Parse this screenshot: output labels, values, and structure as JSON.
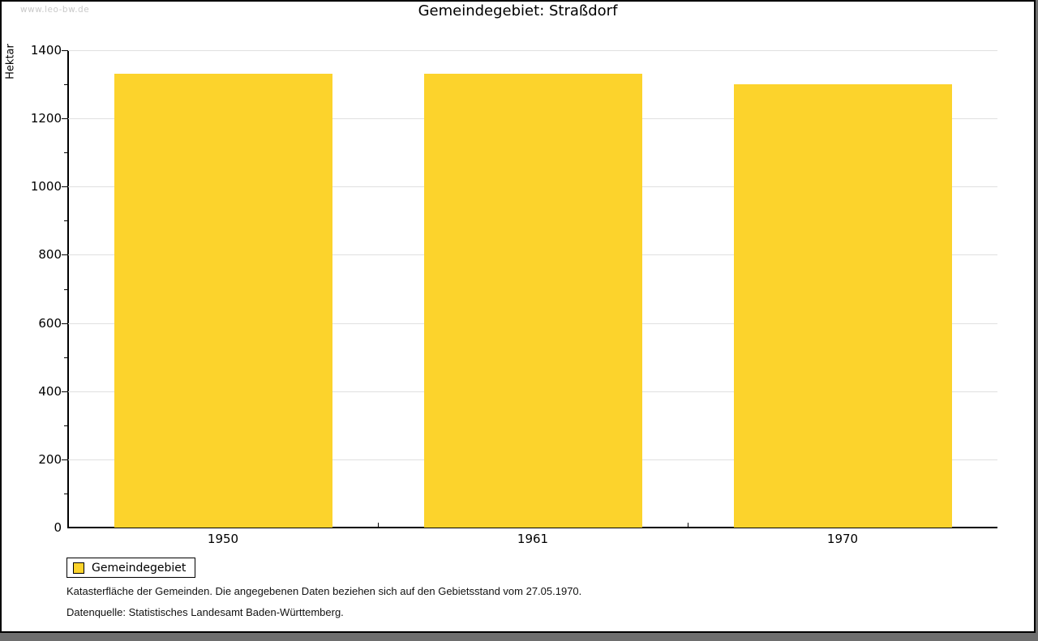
{
  "watermark": "www.leo-bw.de",
  "title": "Gemeindegebiet: Straßdorf",
  "chart_data": {
    "type": "bar",
    "title": "Gemeindegebiet: Straßdorf",
    "categories": [
      "1950",
      "1961",
      "1970"
    ],
    "series": [
      {
        "name": "Gemeindegebiet",
        "values": [
          1331,
          1331,
          1300
        ],
        "color": "#fcd32c"
      }
    ],
    "xlabel": "",
    "ylabel": "Hektar",
    "ylim": [
      0,
      1400
    ],
    "ytick_interval": 200,
    "yminor_tick_interval": 100,
    "grid": true,
    "legend_position": "below-left",
    "unit": "Hektar"
  },
  "legend": {
    "items": [
      {
        "label": "Gemeindegebiet",
        "color": "#fcd32c"
      }
    ]
  },
  "footnotes": {
    "line1": "Katasterfläche der Gemeinden. Die angegebenen Daten beziehen sich auf den Gebietsstand vom 27.05.1970.",
    "line2": "Datenquelle: Statistisches Landesamt Baden-Württemberg."
  },
  "colors": {
    "bar": "#fcd32c",
    "gridline": "#e0e0e0",
    "axis": "#000000",
    "watermark": "#c9c9c9",
    "frame_shadow": "#6e6e6e",
    "background": "#ffffff"
  }
}
